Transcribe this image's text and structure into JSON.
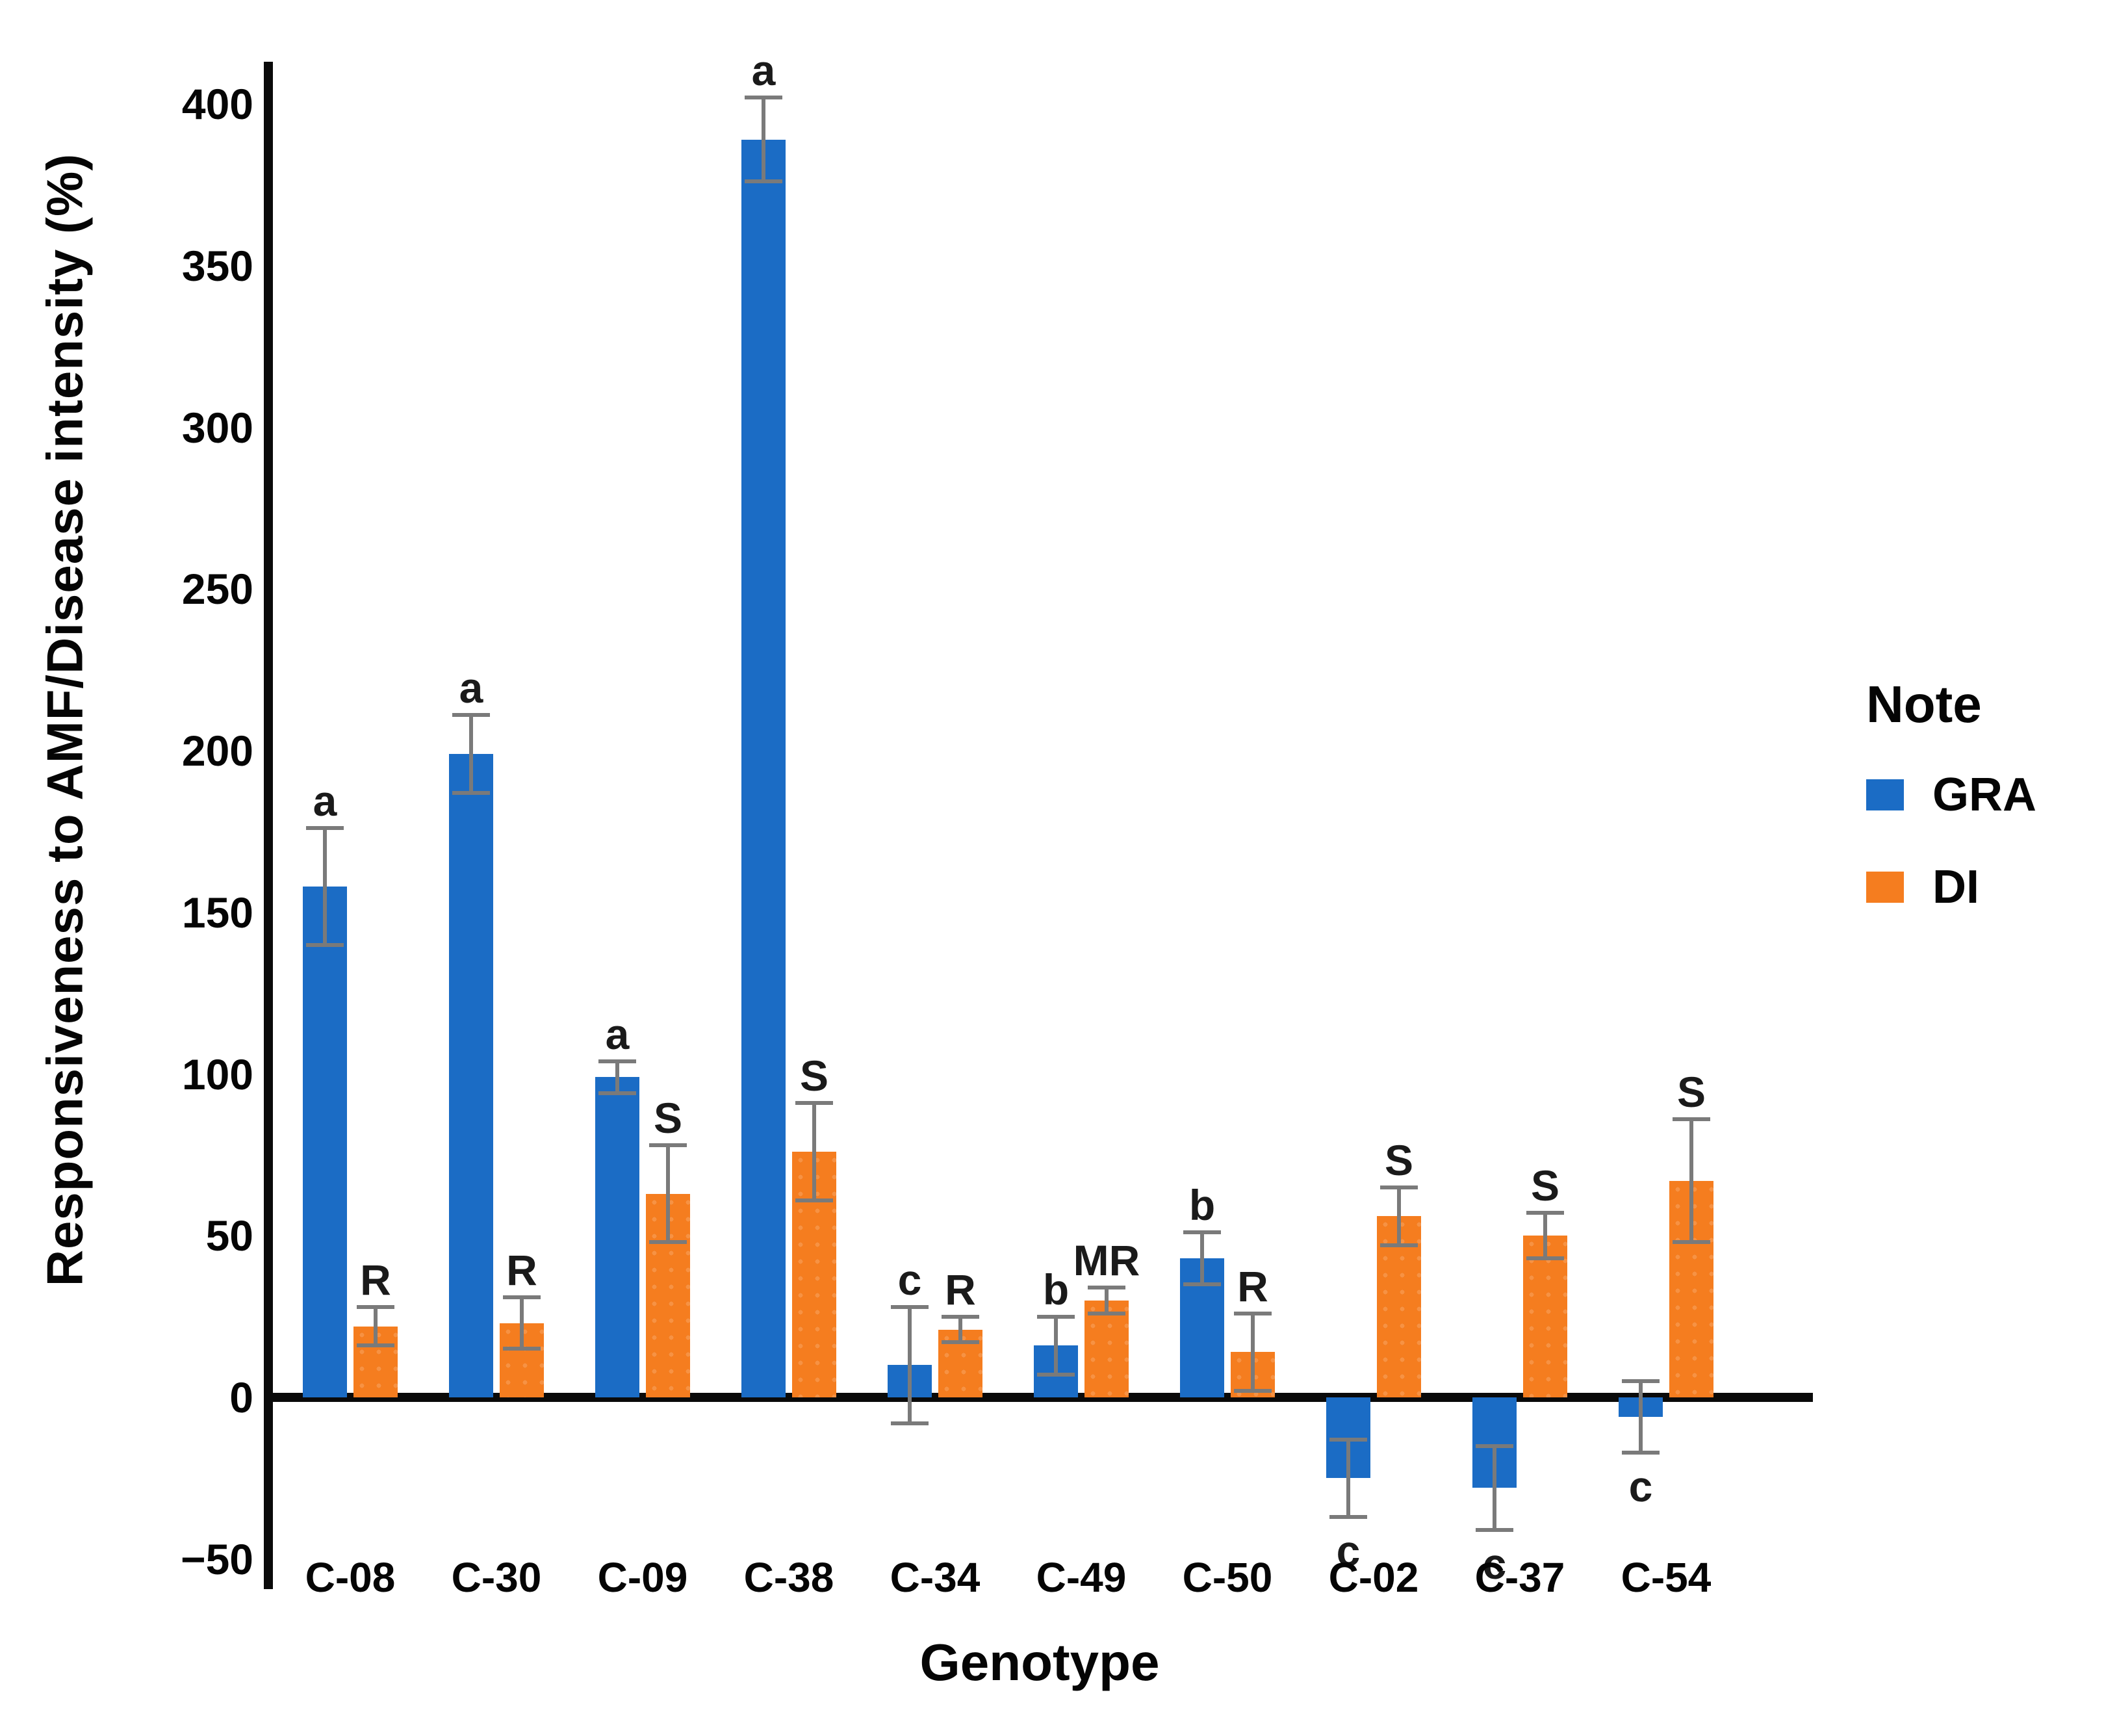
{
  "figure": {
    "background": "#ffffff",
    "text_color": "#050505"
  },
  "y_axis": {
    "title": "Responsiveness to AMF/Disease intensity (%)",
    "tick_labels": [
      "400",
      "350",
      "300",
      "250",
      "200",
      "150",
      "100",
      "50",
      "0",
      "−50"
    ],
    "tick_values": [
      400,
      350,
      300,
      250,
      200,
      150,
      100,
      50,
      0,
      -50
    ]
  },
  "x_axis": {
    "title": "Genotype"
  },
  "legend": {
    "title": "Note",
    "items": [
      {
        "label": "GRA",
        "color": "#1b6cc5"
      },
      {
        "label": "DI",
        "color": "#f57d1f"
      }
    ]
  },
  "chart_data": {
    "type": "bar",
    "title": "",
    "xlabel": "Genotype",
    "ylabel": "Responsiveness to AMF/Disease intensity (%)",
    "ylim": [
      -50,
      420
    ],
    "grid": false,
    "legend_position": "right",
    "error_bar_color": "#7a7a7a",
    "categories": [
      "C-08",
      "C-30",
      "C-09",
      "C-38",
      "C-34",
      "C-49",
      "C-50",
      "C-02",
      "C-37",
      "C-54"
    ],
    "series": [
      {
        "name": "GRA",
        "color": "#1b6cc5",
        "values": [
          158,
          199,
          99,
          389,
          10,
          16,
          43,
          -25,
          -28,
          -6
        ],
        "errors": [
          18,
          12,
          5,
          13,
          18,
          9,
          8,
          12,
          13,
          11
        ],
        "letters": [
          "a",
          "a",
          "a",
          "a",
          "c",
          "b",
          "b",
          "c",
          "c",
          "c"
        ]
      },
      {
        "name": "DI",
        "color": "#f57d1f",
        "values": [
          22,
          23,
          63,
          76,
          21,
          30,
          14,
          56,
          50,
          67
        ],
        "errors": [
          6,
          8,
          15,
          15,
          4,
          4,
          12,
          9,
          7,
          19
        ],
        "letters": [
          "R",
          "R",
          "S",
          "S",
          "R",
          "MR",
          "R",
          "S",
          "S",
          "S"
        ]
      }
    ]
  }
}
